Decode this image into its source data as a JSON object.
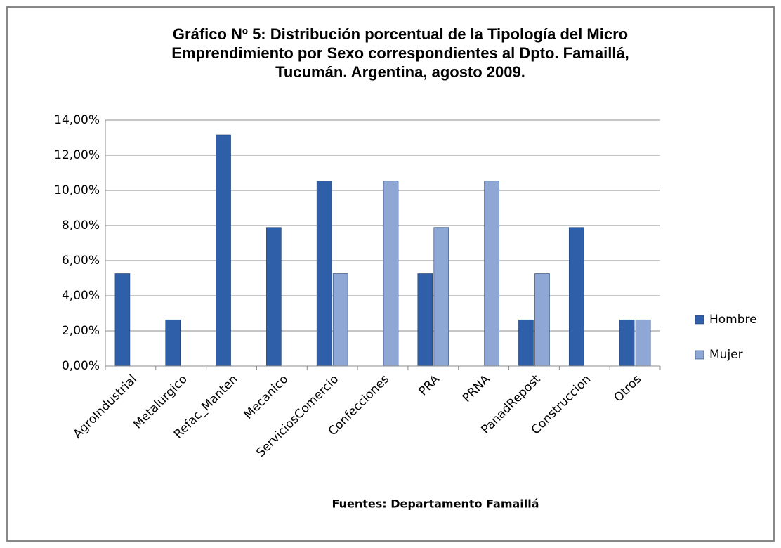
{
  "chart_data": {
    "type": "bar",
    "title": [
      "Gráfico Nº 5: Distribución porcentual de la Tipología del Micro",
      "Emprendimiento por Sexo correspondientes al Dpto. Famaillá,",
      "Tucumán. Argentina, agosto 2009."
    ],
    "x_label": "Fuentes: Departamento Famaillá",
    "categories": [
      "AgroIndustrial",
      "Metalurgico",
      "Refac_Manten",
      "Mecanico",
      "ServiciosComercio",
      "Confecciones",
      "PRA",
      "PRNA",
      "PanadRepost",
      "Construccion",
      "Otros"
    ],
    "series": [
      {
        "name": "Hombre",
        "color": "#2f5fa9",
        "values": [
          5.26,
          2.63,
          13.16,
          7.89,
          10.53,
          0,
          5.26,
          0,
          2.63,
          7.89,
          2.63
        ]
      },
      {
        "name": "Mujer",
        "color": "#8ea7d5",
        "values": [
          0,
          0,
          0,
          0,
          5.26,
          10.53,
          7.89,
          10.53,
          5.26,
          0,
          2.63
        ]
      }
    ],
    "ylim": [
      0,
      14
    ],
    "yticks": [
      {
        "value": 0,
        "label": "0,00%"
      },
      {
        "value": 2,
        "label": "2,00%"
      },
      {
        "value": 4,
        "label": "4,00%"
      },
      {
        "value": 6,
        "label": "6,00%"
      },
      {
        "value": 8,
        "label": "8,00%"
      },
      {
        "value": 10,
        "label": "10,00%"
      },
      {
        "value": 12,
        "label": "12,00%"
      },
      {
        "value": 14,
        "label": "14,00%"
      }
    ],
    "grid": true,
    "legend": "right"
  }
}
